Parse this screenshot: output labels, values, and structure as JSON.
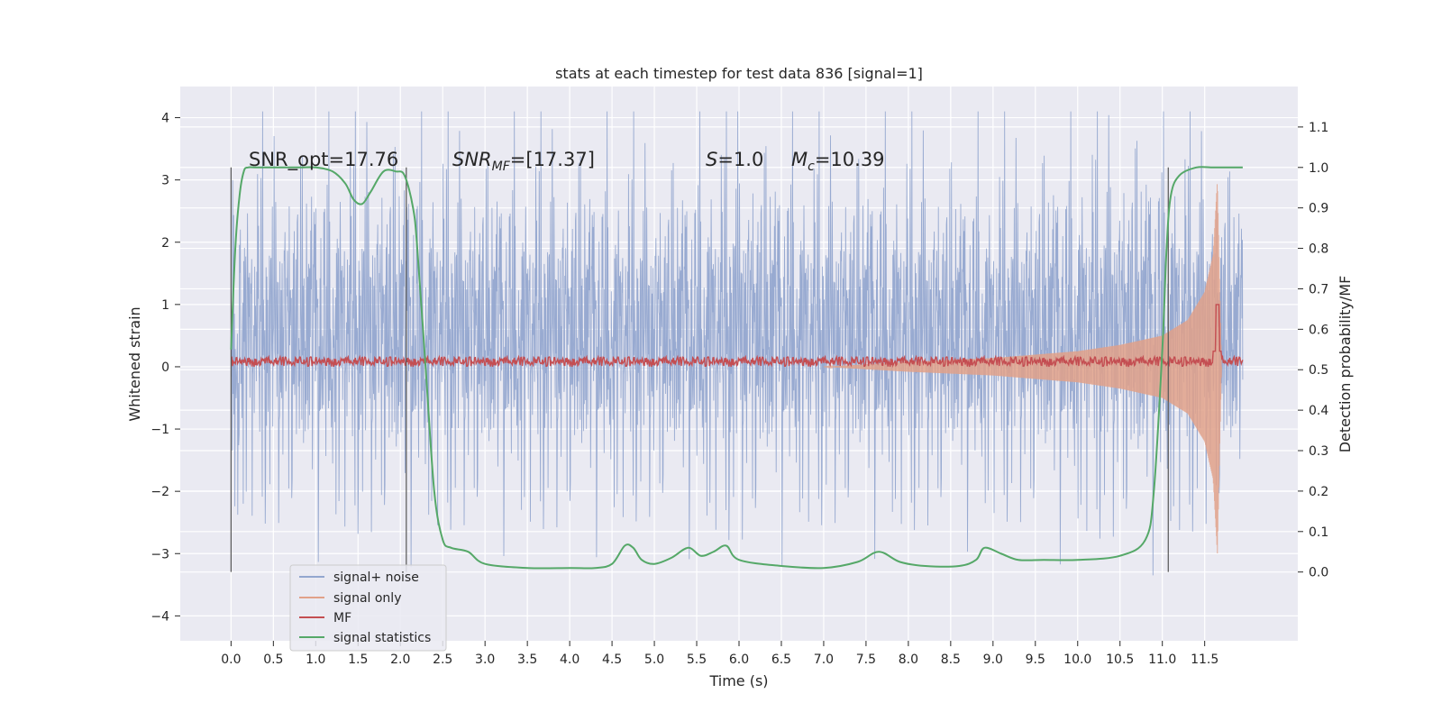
{
  "chart_data": {
    "type": "line",
    "title": "stats at each timestep for test data 836 [signal=1]",
    "xlabel": "Time (s)",
    "ylabel": "Whitened strain",
    "y2label": "Detection probability/MF",
    "xlim": [
      -0.6,
      12.6
    ],
    "ylim": [
      -4.4,
      4.5
    ],
    "y2lim": [
      -0.17,
      1.2
    ],
    "xticks": [
      "0.0",
      "0.5",
      "1.0",
      "1.5",
      "2.0",
      "2.5",
      "3.0",
      "3.5",
      "4.0",
      "4.5",
      "5.0",
      "5.5",
      "6.0",
      "6.5",
      "7.0",
      "7.5",
      "8.0",
      "8.5",
      "9.0",
      "9.5",
      "10.0",
      "10.5",
      "11.0",
      "11.5"
    ],
    "yticks": [
      "4",
      "3",
      "2",
      "1",
      "0",
      "−1",
      "−2",
      "−3",
      "−4"
    ],
    "y2ticks": [
      "1.1",
      "1.0",
      "0.9",
      "0.8",
      "0.7",
      "0.6",
      "0.5",
      "0.4",
      "0.3",
      "0.2",
      "0.1",
      "0.0"
    ],
    "grid": true,
    "legend_position": "lower-left",
    "annotations": {
      "snr_opt": "SNR_opt=17.76",
      "snr_mf_name": "SNR",
      "snr_mf_sub": "MF",
      "snr_mf_tail": "=[17.37]",
      "s_name": "S",
      "s_value": "=1.0",
      "mc_name": "M",
      "mc_sub": "c",
      "mc_value": "=10.39"
    },
    "segment_markers_x": [
      0.0,
      2.07,
      11.07
    ],
    "series": [
      {
        "name": "signal+ noise",
        "color": "#93a7cf",
        "description_range": "dense noise between about -3.6 and 4.1 on the left axis over 0.0 to 11.95 s",
        "envelope_x": [
          0.0,
          1.0,
          2.0,
          3.0,
          4.0,
          5.0,
          6.0,
          7.0,
          8.0,
          9.0,
          10.0,
          11.0,
          11.95
        ],
        "envelope_upper": [
          2.5,
          2.7,
          2.8,
          2.6,
          2.7,
          2.5,
          2.9,
          2.6,
          2.7,
          2.5,
          2.8,
          2.9,
          2.4
        ],
        "envelope_lower": [
          -2.5,
          -2.6,
          -2.7,
          -2.5,
          -2.6,
          -2.4,
          -2.6,
          -2.5,
          -2.6,
          -2.5,
          -2.6,
          -2.7,
          -2.3
        ]
      },
      {
        "name": "signal only",
        "color": "#e1a189",
        "envelope_x": [
          7.0,
          8.0,
          9.0,
          10.0,
          10.5,
          11.0,
          11.3,
          11.5,
          11.6,
          11.65,
          11.7
        ],
        "envelope_amplitude": [
          0.0,
          0.08,
          0.14,
          0.25,
          0.35,
          0.5,
          0.75,
          1.2,
          1.8,
          3.0,
          0.0
        ]
      },
      {
        "name": "MF",
        "color": "#c44e52",
        "baseline": 0.08,
        "peak_x": 11.65,
        "peak_y": 1.0
      },
      {
        "name": "signal statistics",
        "color": "#55a868",
        "axis": "right",
        "x": [
          0.0,
          0.05,
          0.1,
          0.15,
          0.2,
          0.3,
          0.5,
          0.8,
          1.0,
          1.2,
          1.35,
          1.45,
          1.55,
          1.65,
          1.8,
          1.95,
          2.05,
          2.15,
          2.2,
          2.3,
          2.4,
          2.5,
          2.6,
          2.8,
          3.0,
          3.5,
          4.0,
          4.3,
          4.5,
          4.65,
          4.75,
          4.85,
          5.0,
          5.2,
          5.4,
          5.55,
          5.7,
          5.85,
          6.0,
          6.5,
          7.0,
          7.4,
          7.65,
          7.9,
          8.2,
          8.6,
          8.8,
          8.9,
          9.1,
          9.3,
          9.6,
          10.0,
          10.5,
          10.8,
          10.9,
          11.0,
          11.05,
          11.1,
          11.2,
          11.4,
          11.6,
          11.8,
          11.95
        ],
        "y": [
          0.55,
          0.8,
          0.93,
          0.99,
          1.0,
          1.0,
          1.0,
          1.0,
          1.0,
          0.99,
          0.96,
          0.92,
          0.91,
          0.94,
          0.99,
          0.99,
          0.98,
          0.9,
          0.8,
          0.5,
          0.2,
          0.08,
          0.06,
          0.05,
          0.02,
          0.01,
          0.01,
          0.01,
          0.02,
          0.065,
          0.06,
          0.03,
          0.02,
          0.035,
          0.06,
          0.04,
          0.05,
          0.065,
          0.03,
          0.015,
          0.01,
          0.025,
          0.05,
          0.025,
          0.015,
          0.015,
          0.03,
          0.06,
          0.045,
          0.03,
          0.03,
          0.03,
          0.04,
          0.08,
          0.2,
          0.55,
          0.8,
          0.93,
          0.98,
          1.0,
          1.0,
          1.0,
          1.0
        ]
      }
    ]
  }
}
